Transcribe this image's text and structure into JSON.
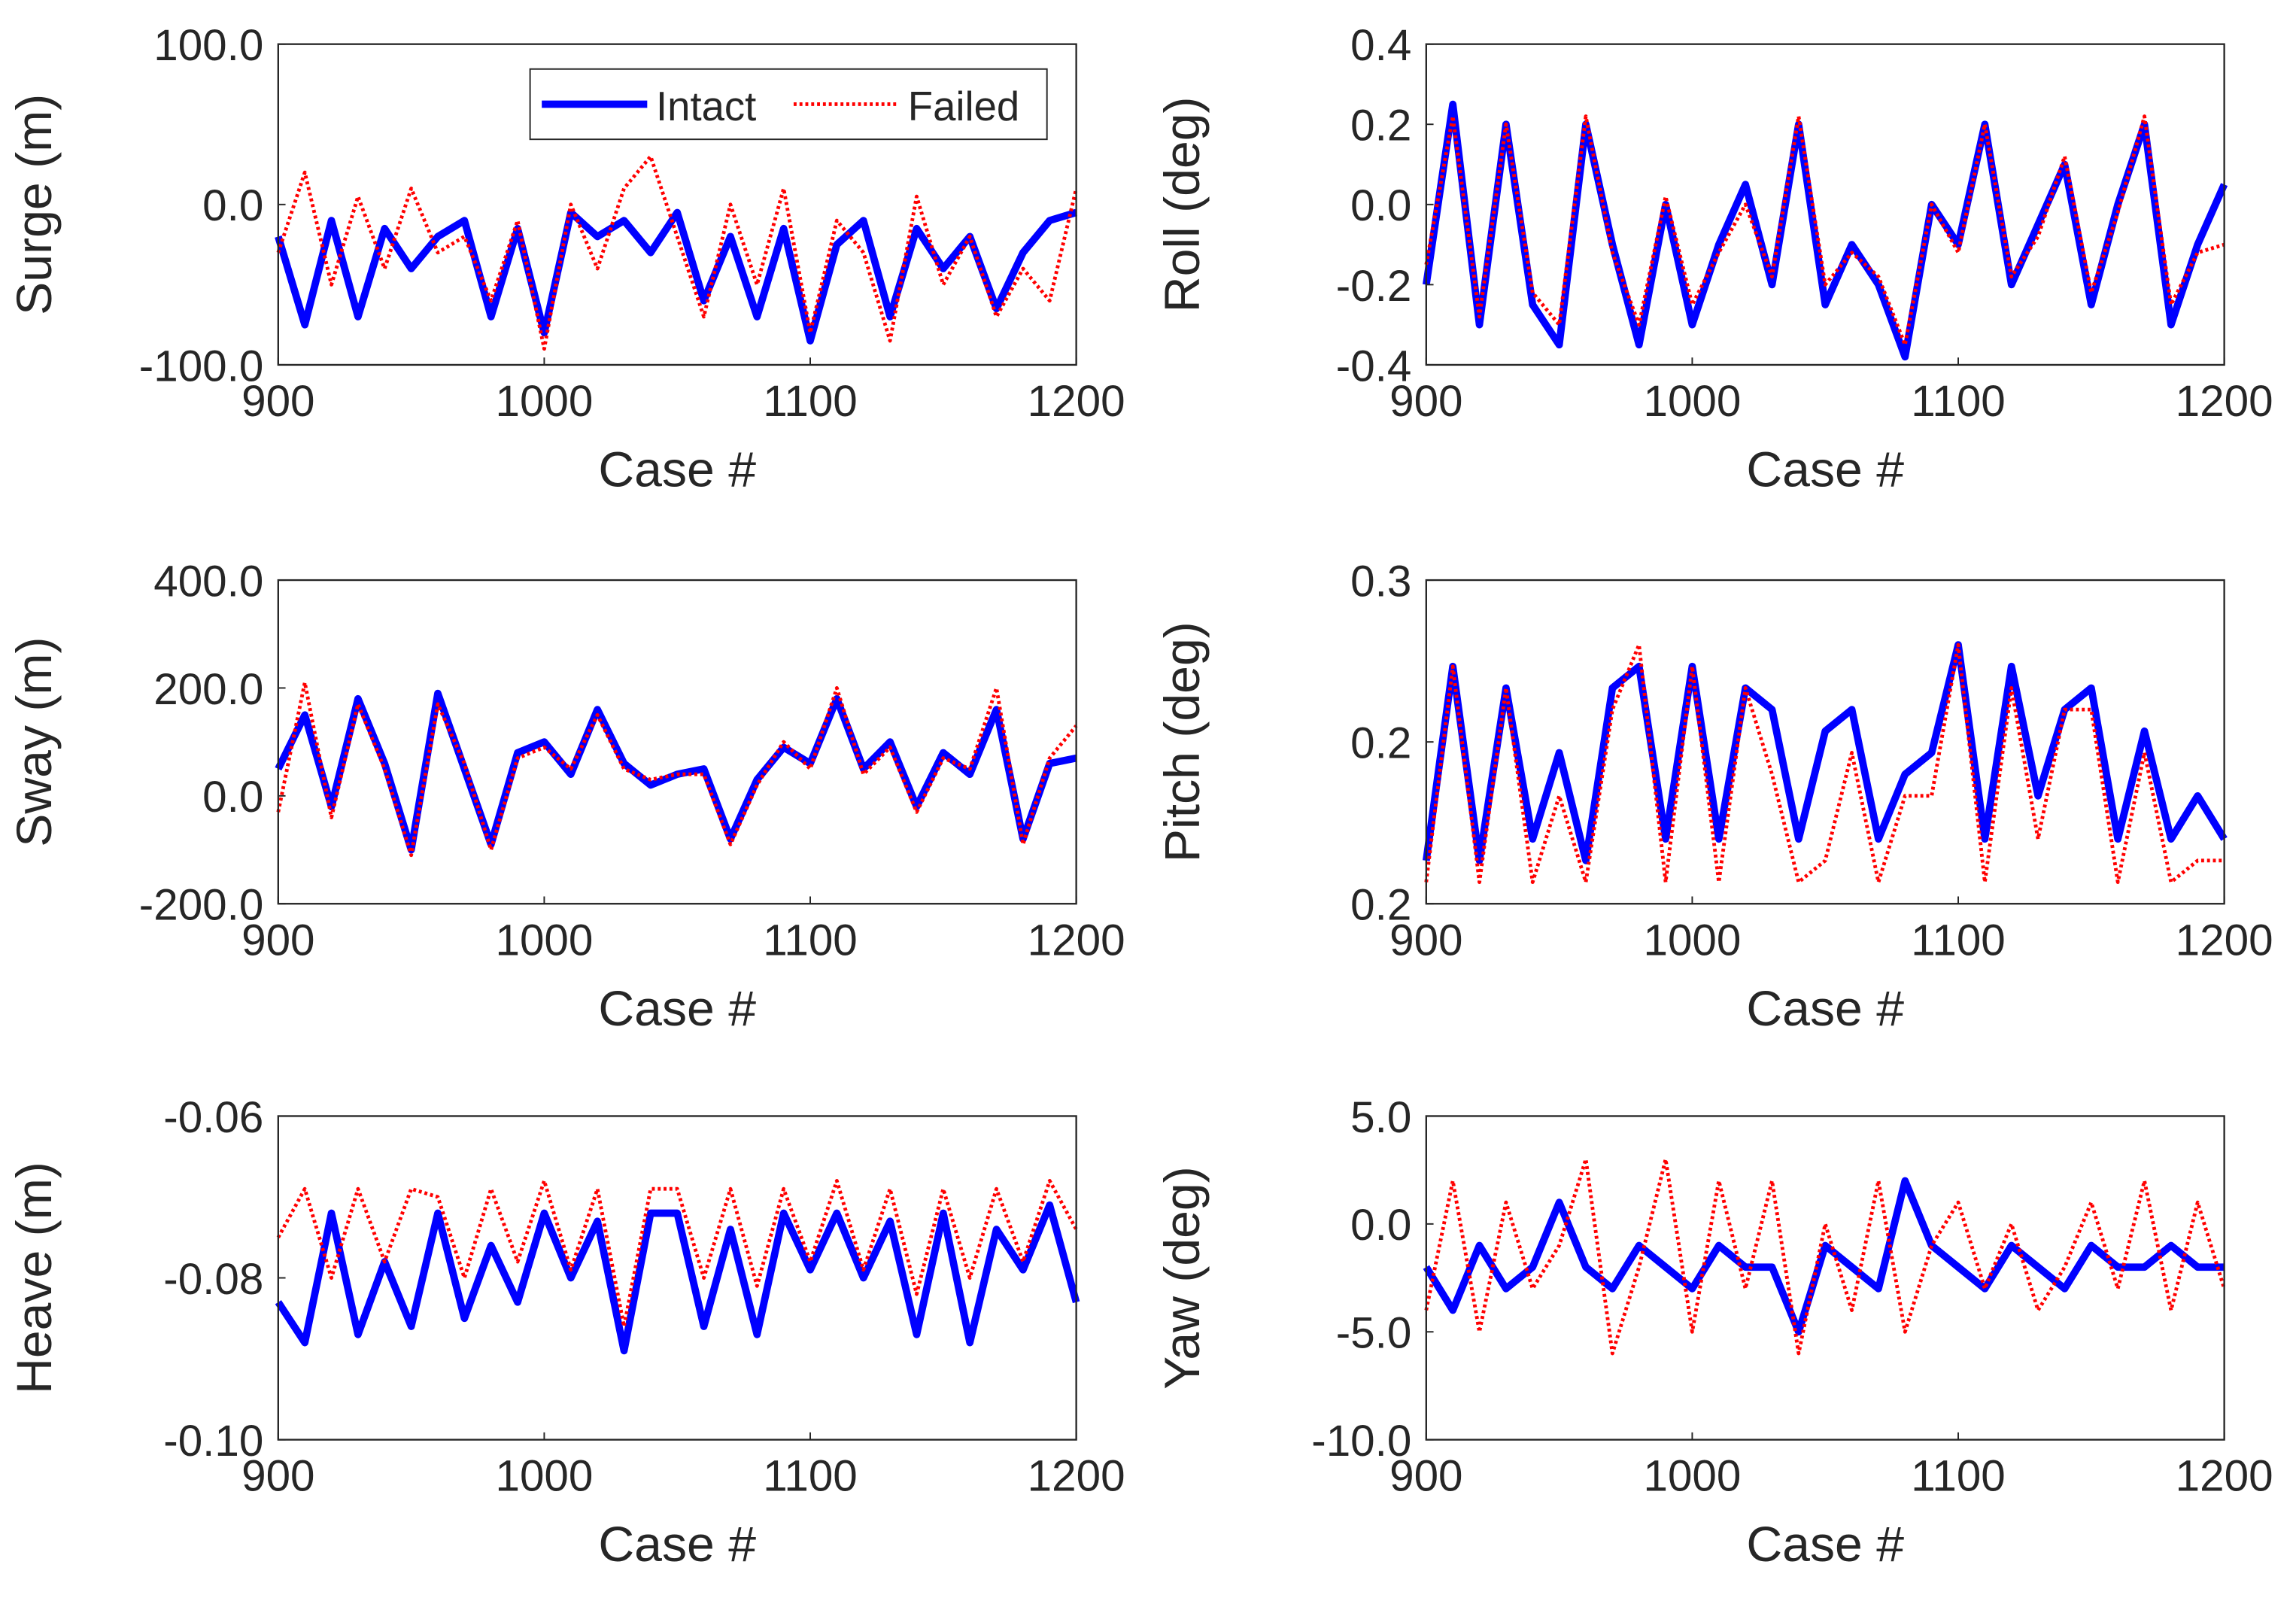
{
  "chart_data": [
    {
      "type": "line",
      "ylabel": "Surge (m)",
      "xlabel": "Case #",
      "x": [
        900,
        910,
        920,
        930,
        940,
        950,
        960,
        970,
        980,
        990,
        1000,
        1010,
        1020,
        1030,
        1040,
        1050,
        1060,
        1070,
        1080,
        1090,
        1100,
        1110,
        1120,
        1130,
        1140,
        1150,
        1160,
        1170,
        1180,
        1190,
        1200
      ],
      "series": [
        {
          "name": "Intact",
          "color": "#0000ff",
          "values": [
            -20,
            -75,
            -10,
            -70,
            -15,
            -40,
            -20,
            -10,
            -70,
            -15,
            -80,
            -5,
            -20,
            -10,
            -30,
            -5,
            -60,
            -20,
            -70,
            -15,
            -85,
            -25,
            -10,
            -70,
            -15,
            -40,
            -20,
            -65,
            -30,
            -10,
            -5
          ]
        },
        {
          "name": "Failed",
          "color": "#ff0000",
          "values": [
            -30,
            20,
            -50,
            5,
            -40,
            10,
            -30,
            -20,
            -60,
            -10,
            -90,
            0,
            -40,
            10,
            30,
            -20,
            -70,
            0,
            -50,
            10,
            -80,
            -10,
            -30,
            -85,
            5,
            -50,
            -20,
            -70,
            -40,
            -60,
            10
          ]
        }
      ],
      "xlim": [
        900,
        1200
      ],
      "xticks": [
        900,
        1000,
        1100,
        1200
      ],
      "ylim": [
        -100,
        100
      ],
      "yticks": [
        {
          "value": -100,
          "label": "-100.0"
        },
        {
          "value": 0,
          "label": "0.0"
        },
        {
          "value": 100,
          "label": "100.0"
        }
      ],
      "legend": "upper right"
    },
    {
      "type": "line",
      "ylabel": "Roll (deg)",
      "xlabel": "Case #",
      "x": [
        900,
        910,
        920,
        930,
        940,
        950,
        960,
        970,
        980,
        990,
        1000,
        1010,
        1020,
        1030,
        1040,
        1050,
        1060,
        1070,
        1080,
        1090,
        1100,
        1110,
        1120,
        1130,
        1140,
        1150,
        1160,
        1170,
        1180,
        1190,
        1200
      ],
      "series": [
        {
          "color": "#0000ff",
          "values": [
            -0.2,
            0.25,
            -0.3,
            0.2,
            -0.25,
            -0.35,
            0.2,
            -0.1,
            -0.35,
            0.0,
            -0.3,
            -0.1,
            0.05,
            -0.2,
            0.2,
            -0.25,
            -0.1,
            -0.2,
            -0.38,
            0.0,
            -0.1,
            0.2,
            -0.2,
            -0.05,
            0.1,
            -0.25,
            0.0,
            0.2,
            -0.3,
            -0.1,
            0.05
          ]
        },
        {
          "color": "#ff0000",
          "values": [
            -0.15,
            0.22,
            -0.28,
            0.2,
            -0.22,
            -0.3,
            0.22,
            -0.12,
            -0.3,
            0.02,
            -0.25,
            -0.12,
            0.0,
            -0.18,
            0.22,
            -0.2,
            -0.12,
            -0.18,
            -0.35,
            0.0,
            -0.12,
            0.2,
            -0.18,
            -0.08,
            0.12,
            -0.22,
            -0.02,
            0.22,
            -0.25,
            -0.12,
            -0.1
          ]
        }
      ],
      "xlim": [
        900,
        1200
      ],
      "xticks": [
        900,
        1000,
        1100,
        1200
      ],
      "ylim": [
        -0.4,
        0.4
      ],
      "yticks": [
        -0.4,
        -0.2,
        {
          "value": 0,
          "label": "0.0"
        },
        0.2,
        0.4
      ]
    },
    {
      "type": "line",
      "ylabel": "Sway (m)",
      "xlabel": "Case #",
      "x": [
        900,
        910,
        920,
        930,
        940,
        950,
        960,
        970,
        980,
        990,
        1000,
        1010,
        1020,
        1030,
        1040,
        1050,
        1060,
        1070,
        1080,
        1090,
        1100,
        1110,
        1120,
        1130,
        1140,
        1150,
        1160,
        1170,
        1180,
        1190,
        1200
      ],
      "series": [
        {
          "color": "#0000ff",
          "values": [
            50,
            150,
            -20,
            180,
            60,
            -100,
            190,
            50,
            -90,
            80,
            100,
            40,
            160,
            60,
            20,
            40,
            50,
            -80,
            30,
            90,
            60,
            180,
            50,
            100,
            -20,
            80,
            40,
            160,
            -80,
            60,
            70
          ]
        },
        {
          "color": "#ff0000",
          "values": [
            -30,
            210,
            -40,
            170,
            50,
            -110,
            170,
            60,
            -100,
            70,
            90,
            50,
            150,
            50,
            30,
            40,
            40,
            -90,
            20,
            100,
            50,
            200,
            40,
            90,
            -30,
            70,
            50,
            200,
            -90,
            70,
            130
          ]
        }
      ],
      "xlim": [
        900,
        1200
      ],
      "xticks": [
        900,
        1000,
        1100,
        1200
      ],
      "ylim": [
        -200,
        400
      ],
      "yticks": [
        {
          "value": -200,
          "label": "-200.0"
        },
        {
          "value": 0,
          "label": "0.0"
        },
        {
          "value": 200,
          "label": "200.0"
        },
        {
          "value": 400,
          "label": "400.0"
        }
      ]
    },
    {
      "type": "line",
      "ylabel": "Pitch (deg)",
      "xlabel": "Case #",
      "x": [
        900,
        910,
        920,
        930,
        940,
        950,
        960,
        970,
        980,
        990,
        1000,
        1010,
        1020,
        1030,
        1040,
        1050,
        1060,
        1070,
        1080,
        1090,
        1100,
        1110,
        1120,
        1130,
        1140,
        1150,
        1160,
        1170,
        1180,
        1190,
        1200
      ],
      "series": [
        {
          "color": "#0000ff",
          "values": [
            0.17,
            0.26,
            0.17,
            0.25,
            0.18,
            0.22,
            0.17,
            0.25,
            0.26,
            0.18,
            0.26,
            0.18,
            0.25,
            0.24,
            0.18,
            0.23,
            0.24,
            0.18,
            0.21,
            0.22,
            0.27,
            0.18,
            0.26,
            0.2,
            0.24,
            0.25,
            0.18,
            0.23,
            0.18,
            0.2,
            0.18
          ]
        },
        {
          "color": "#ff0000",
          "values": [
            0.16,
            0.26,
            0.16,
            0.25,
            0.16,
            0.2,
            0.16,
            0.24,
            0.27,
            0.16,
            0.26,
            0.16,
            0.25,
            0.21,
            0.16,
            0.17,
            0.22,
            0.16,
            0.2,
            0.2,
            0.27,
            0.16,
            0.25,
            0.18,
            0.24,
            0.24,
            0.16,
            0.22,
            0.16,
            0.17,
            0.17
          ]
        }
      ],
      "xlim": [
        900,
        1200
      ],
      "xticks": [
        900,
        1000,
        1100,
        1200
      ],
      "ylim": [
        0.15,
        0.3
      ],
      "yticks": [
        {
          "value": 0.15,
          "label": "0.2"
        },
        {
          "value": 0.225,
          "label": "0.2"
        },
        0.3
      ]
    },
    {
      "type": "line",
      "ylabel": "Heave (m)",
      "xlabel": "Case #",
      "x": [
        900,
        910,
        920,
        930,
        940,
        950,
        960,
        970,
        980,
        990,
        1000,
        1010,
        1020,
        1030,
        1040,
        1050,
        1060,
        1070,
        1080,
        1090,
        1100,
        1110,
        1120,
        1130,
        1140,
        1150,
        1160,
        1170,
        1180,
        1190,
        1200
      ],
      "series": [
        {
          "color": "#0000ff",
          "values": [
            -0.083,
            -0.088,
            -0.072,
            -0.087,
            -0.078,
            -0.086,
            -0.072,
            -0.085,
            -0.076,
            -0.083,
            -0.072,
            -0.08,
            -0.073,
            -0.089,
            -0.072,
            -0.072,
            -0.086,
            -0.074,
            -0.087,
            -0.072,
            -0.079,
            -0.072,
            -0.08,
            -0.073,
            -0.087,
            -0.072,
            -0.088,
            -0.074,
            -0.079,
            -0.071,
            -0.083
          ]
        },
        {
          "color": "#ff0000",
          "values": [
            -0.075,
            -0.069,
            -0.08,
            -0.069,
            -0.078,
            -0.069,
            -0.07,
            -0.08,
            -0.069,
            -0.078,
            -0.068,
            -0.079,
            -0.069,
            -0.086,
            -0.069,
            -0.069,
            -0.08,
            -0.069,
            -0.081,
            -0.069,
            -0.078,
            -0.068,
            -0.079,
            -0.069,
            -0.082,
            -0.069,
            -0.08,
            -0.069,
            -0.078,
            -0.068,
            -0.074
          ]
        }
      ],
      "xlim": [
        900,
        1200
      ],
      "xticks": [
        900,
        1000,
        1100,
        1200
      ],
      "ylim": [
        -0.1,
        -0.06
      ],
      "yticks": [
        {
          "value": -0.1,
          "label": "-0.10"
        },
        {
          "value": -0.08,
          "label": "-0.08"
        },
        {
          "value": -0.06,
          "label": "-0.06"
        }
      ]
    },
    {
      "type": "line",
      "ylabel": "Yaw (deg)",
      "xlabel": "Case #",
      "x": [
        900,
        910,
        920,
        930,
        940,
        950,
        960,
        970,
        980,
        990,
        1000,
        1010,
        1020,
        1030,
        1040,
        1050,
        1060,
        1070,
        1080,
        1090,
        1100,
        1110,
        1120,
        1130,
        1140,
        1150,
        1160,
        1170,
        1180,
        1190,
        1200
      ],
      "series": [
        {
          "color": "#0000ff",
          "values": [
            -2,
            -4,
            -1,
            -3,
            -2,
            1,
            -2,
            -3,
            -1,
            -2,
            -3,
            -1,
            -2,
            -2,
            -5,
            -1,
            -2,
            -3,
            2,
            -1,
            -2,
            -3,
            -1,
            -2,
            -3,
            -1,
            -2,
            -2,
            -1,
            -2,
            -2
          ]
        },
        {
          "color": "#ff0000",
          "values": [
            -4,
            2,
            -5,
            1,
            -3,
            -1,
            3,
            -6,
            -2,
            3,
            -5,
            2,
            -3,
            2,
            -6,
            0,
            -4,
            2,
            -5,
            -1,
            1,
            -3,
            0,
            -4,
            -2,
            1,
            -3,
            2,
            -4,
            1,
            -3
          ]
        }
      ],
      "xlim": [
        900,
        1200
      ],
      "xticks": [
        900,
        1000,
        1100,
        1200
      ],
      "ylim": [
        -10,
        5
      ],
      "yticks": [
        {
          "value": -10,
          "label": "-10.0"
        },
        {
          "value": -5,
          "label": "-5.0"
        },
        {
          "value": 0,
          "label": "0.0"
        },
        {
          "value": 5,
          "label": "5.0"
        }
      ]
    }
  ]
}
